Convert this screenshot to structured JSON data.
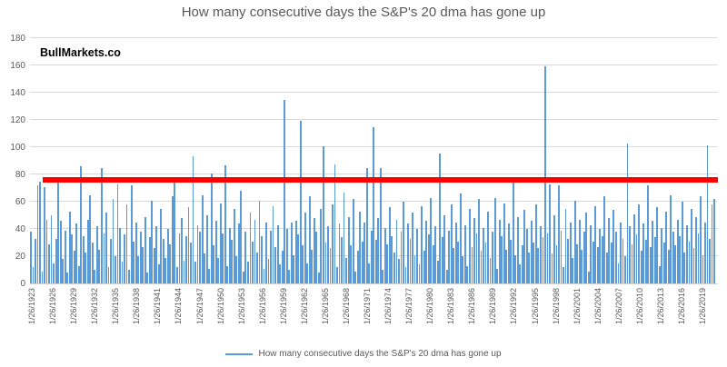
{
  "title": "How many consecutive days the S&P's 20 dma has gone up",
  "watermark": "BullMarkets.co",
  "legend": {
    "label": "How many consecutive days the S&P's 20 dma has gone up",
    "marker": "line",
    "marker_color": "#5B9BD5"
  },
  "colors": {
    "bar": "#5B9BD5",
    "threshold": "#FF0000",
    "gridline": "#D9D9D9",
    "axis_text": "#595959",
    "title_text": "#595959"
  },
  "chart_data": {
    "type": "bar",
    "title": "How many consecutive days the S&P's 20 dma has gone up",
    "xlabel": "",
    "ylabel": "",
    "ylim": [
      0,
      180
    ],
    "y_ticks": [
      0,
      20,
      40,
      60,
      80,
      100,
      120,
      140,
      160,
      180
    ],
    "grid": true,
    "legend_position": "bottom",
    "threshold_line": {
      "value": 77,
      "color": "#FF0000"
    },
    "x_tick_labels": [
      "1/26/1923",
      "1/26/1926",
      "1/26/1929",
      "1/26/1932",
      "1/26/1935",
      "1/26/1938",
      "1/26/1941",
      "1/26/1944",
      "1/26/1947",
      "1/26/1950",
      "1/26/1953",
      "1/26/1956",
      "1/26/1959",
      "1/26/1962",
      "1/26/1965",
      "1/26/1968",
      "1/26/1971",
      "1/26/1974",
      "1/26/1977",
      "1/26/1980",
      "1/26/1983",
      "1/26/1986",
      "1/26/1989",
      "1/26/1992",
      "1/26/1995",
      "1/26/1998",
      "1/26/2001",
      "1/26/2004",
      "1/26/2007",
      "1/26/2010",
      "1/26/2013",
      "1/26/2016",
      "1/26/2019"
    ],
    "values": [
      38,
      12,
      33,
      72,
      75,
      9,
      71,
      47,
      29,
      50,
      15,
      33,
      74,
      46,
      18,
      39,
      8,
      53,
      36,
      24,
      44,
      13,
      86,
      35,
      23,
      47,
      65,
      30,
      10,
      42,
      25,
      85,
      37,
      52,
      12,
      33,
      62,
      20,
      73,
      41,
      16,
      36,
      58,
      10,
      72,
      31,
      45,
      20,
      38,
      27,
      49,
      8,
      34,
      61,
      26,
      42,
      14,
      55,
      33,
      19,
      40,
      29,
      64,
      77,
      12,
      37,
      48,
      17,
      35,
      56,
      30,
      94,
      16,
      43,
      38,
      65,
      22,
      50,
      11,
      81,
      28,
      46,
      19,
      59,
      37,
      87,
      13,
      41,
      32,
      55,
      20,
      44,
      68,
      9,
      38,
      16,
      52,
      31,
      47,
      23,
      61,
      35,
      11,
      45,
      18,
      39,
      57,
      27,
      43,
      14,
      24,
      135,
      40,
      10,
      45,
      21,
      46,
      36,
      120,
      28,
      52,
      15,
      64,
      25,
      48,
      38,
      8,
      55,
      101,
      30,
      42,
      26,
      58,
      88,
      12,
      44,
      34,
      67,
      19,
      49,
      28,
      62,
      9,
      24,
      53,
      31,
      45,
      85,
      15,
      39,
      115,
      32,
      48,
      85,
      10,
      41,
      29,
      56,
      35,
      23,
      47,
      18,
      38,
      60,
      12,
      44,
      33,
      52,
      21,
      40,
      14,
      57,
      24,
      46,
      36,
      63,
      28,
      42,
      17,
      96,
      34,
      50,
      10,
      39,
      58,
      26,
      45,
      31,
      66,
      20,
      43,
      13,
      55,
      27,
      48,
      37,
      62,
      24,
      41,
      30,
      53,
      19,
      38,
      63,
      11,
      47,
      35,
      59,
      25,
      44,
      32,
      75,
      21,
      49,
      14,
      28,
      54,
      40,
      23,
      46,
      30,
      58,
      26,
      42,
      34,
      160,
      37,
      73,
      22,
      50,
      28,
      72,
      39,
      12,
      55,
      33,
      45,
      19,
      61,
      29,
      47,
      25,
      38,
      52,
      9,
      43,
      31,
      57,
      27,
      40,
      35,
      64,
      23,
      48,
      30,
      54,
      38,
      15,
      45,
      33,
      20,
      103,
      42,
      29,
      51,
      36,
      58,
      24,
      44,
      32,
      72,
      27,
      46,
      34,
      56,
      13,
      41,
      30,
      53,
      25,
      65,
      38,
      28,
      47,
      35,
      60,
      23,
      43,
      31,
      55,
      26,
      49,
      37,
      64,
      21,
      45,
      102,
      33,
      58,
      62
    ]
  }
}
